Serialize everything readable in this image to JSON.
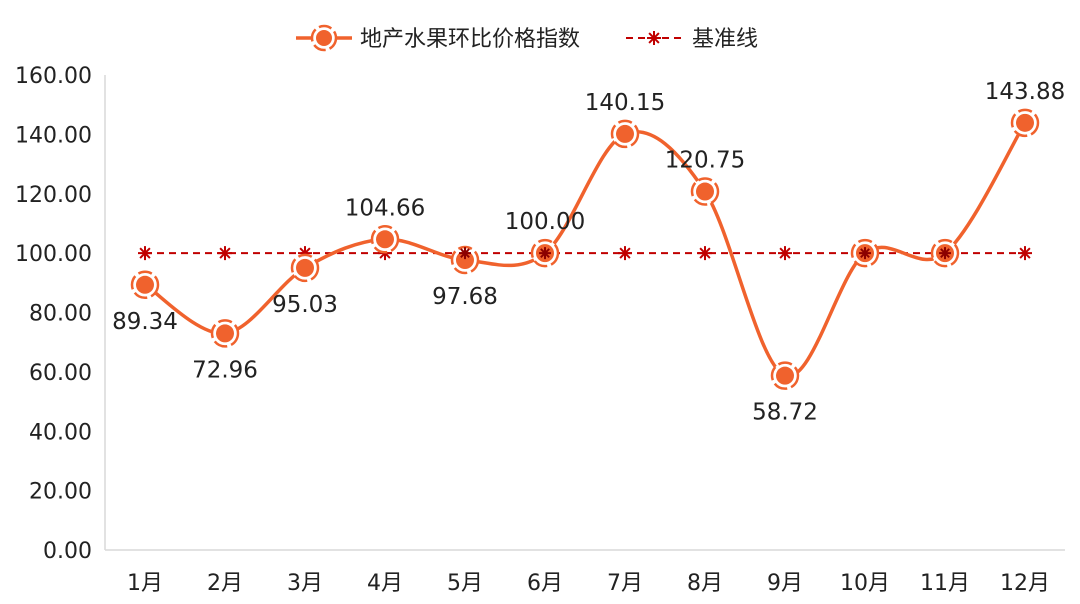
{
  "chart_data": {
    "type": "line",
    "categories": [
      "1月",
      "2月",
      "3月",
      "4月",
      "5月",
      "6月",
      "7月",
      "8月",
      "9月",
      "10月",
      "11月",
      "12月"
    ],
    "series": [
      {
        "name": "地产水果环比价格指数",
        "values": [
          89.34,
          72.96,
          95.03,
          104.66,
          97.68,
          100.0,
          140.15,
          120.75,
          58.72,
          100.0,
          100.0,
          143.88
        ],
        "labels": [
          "89.34",
          "72.96",
          "95.03",
          "104.66",
          "97.68",
          "100.00",
          "140.15",
          "120.75",
          "58.72",
          "",
          "",
          "143.88"
        ],
        "label_positions": [
          "below",
          "below",
          "below",
          "above",
          "below",
          "above",
          "above",
          "above",
          "below",
          "none",
          "none",
          "above"
        ],
        "color": "#f0622d",
        "smooth": true
      },
      {
        "name": "基准线",
        "values": [
          100,
          100,
          100,
          100,
          100,
          100,
          100,
          100,
          100,
          100,
          100,
          100
        ],
        "color": "#c00000",
        "dashed": true
      }
    ],
    "yticks": [
      "0.00",
      "20.00",
      "40.00",
      "60.00",
      "80.00",
      "100.00",
      "120.00",
      "140.00",
      "160.00"
    ],
    "ylim": [
      0,
      160
    ],
    "legend": "top-center",
    "grid": false
  }
}
